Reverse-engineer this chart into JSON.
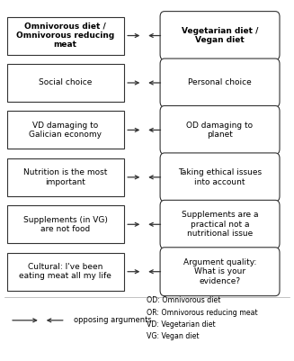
{
  "figsize": [
    3.27,
    4.01
  ],
  "dpi": 100,
  "bg_color": "#ffffff",
  "rows": [
    {
      "left_text": "Omnivorous diet /\nOmnivorous reducing\nmeat",
      "right_text": "Vegetarian diet /\nVegan diet",
      "left_bold": true,
      "right_bold": true,
      "left_corner": "square",
      "right_corner": "round"
    },
    {
      "left_text": "Social choice",
      "right_text": "Personal choice",
      "left_bold": false,
      "right_bold": false,
      "left_corner": "square",
      "right_corner": "round"
    },
    {
      "left_text": "VD damaging to\nGalician economy",
      "right_text": "OD damaging to\nplanet",
      "left_bold": false,
      "right_bold": false,
      "left_corner": "square",
      "right_corner": "round"
    },
    {
      "left_text": "Nutrition is the most\nimportant",
      "right_text": "Taking ethical issues\ninto account",
      "left_bold": false,
      "right_bold": false,
      "left_corner": "square",
      "right_corner": "round"
    },
    {
      "left_text": "Supplements (in VG)\nare not food",
      "right_text": "Supplements are a\npractical not a\nnutritional issue",
      "left_bold": false,
      "right_bold": false,
      "left_corner": "square",
      "right_corner": "round"
    },
    {
      "left_text": "Cultural: I've been\neating meat all my life",
      "right_text": "Argument quality:\nWhat is your\nevidence?",
      "left_bold": false,
      "right_bold": false,
      "left_corner": "square",
      "right_corner": "round"
    }
  ],
  "legend_arrow_label": "opposing arguments",
  "legend_items": [
    "OD: Omnivorous diet",
    "OR: Omnivorous reducing meat",
    "VD: Vegetarian diet",
    "VG: Vegan diet"
  ],
  "box_edge_color": "#333333",
  "text_color": "#000000",
  "arrow_color": "#333333",
  "divider_color": "#aaaaaa",
  "font_size": 6.5,
  "legend_font_size": 6.0
}
